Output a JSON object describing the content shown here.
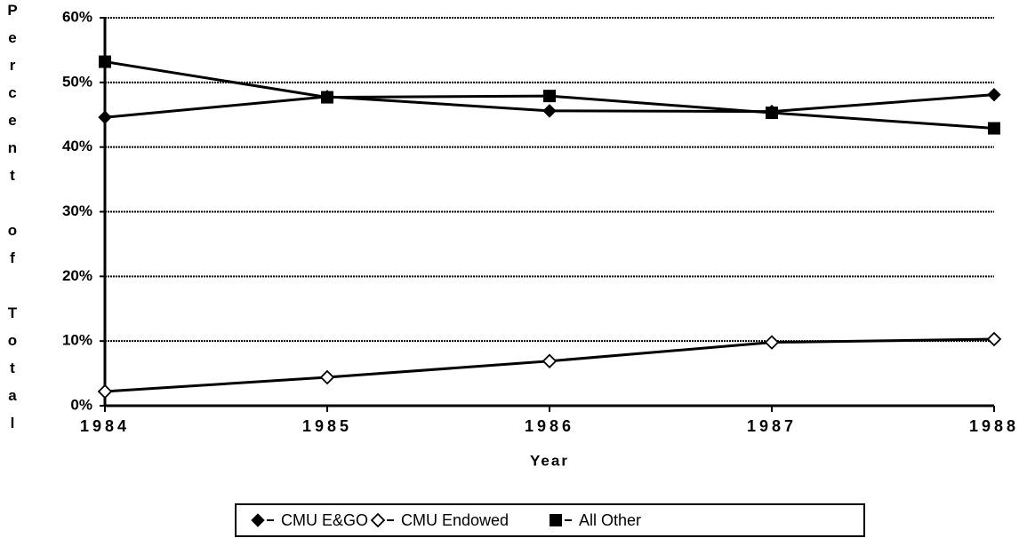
{
  "chart_data": {
    "type": "line",
    "y_label": "Percent of Total",
    "x_label": "Year",
    "categories": [
      "1984",
      "1985",
      "1986",
      "1987",
      "1988"
    ],
    "series": [
      {
        "name": "CMU E&GO",
        "color": "#000000",
        "marker": "diamond",
        "values": [
          44.6,
          47.8,
          45.6,
          45.5,
          48.1
        ]
      },
      {
        "name": "CMU Endowed",
        "color": "#000000",
        "marker": "diamond-open",
        "values": [
          2.2,
          4.4,
          6.9,
          9.8,
          10.3
        ]
      },
      {
        "name": "All Other",
        "color": "#000000",
        "marker": "square",
        "values": [
          53.2,
          47.7,
          47.9,
          45.3,
          42.9
        ]
      }
    ],
    "ylim": [
      0,
      60
    ],
    "yticks": [
      {
        "value": 0,
        "label": "0%"
      },
      {
        "value": 10,
        "label": "10%"
      },
      {
        "value": 20,
        "label": "20%"
      },
      {
        "value": 30,
        "label": "30%"
      },
      {
        "value": 40,
        "label": "40%"
      },
      {
        "value": 50,
        "label": "50%"
      },
      {
        "value": 60,
        "label": "60%"
      }
    ],
    "grid": true,
    "legend": "bottom"
  }
}
